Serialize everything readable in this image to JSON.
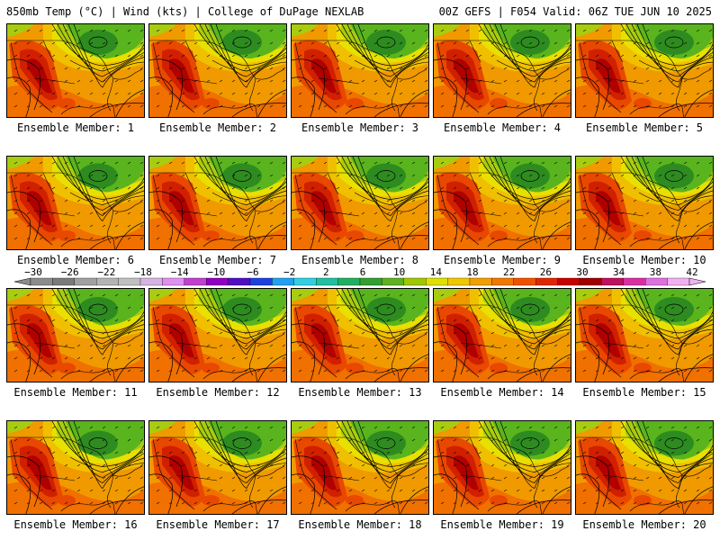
{
  "header": {
    "left": "850mb Temp (°C) | Wind (kts) | College of DuPage NEXLAB",
    "right": "00Z GEFS | F054 Valid: 06Z TUE JUN 10 2025"
  },
  "members": [
    {
      "label": "Ensemble Member: 1"
    },
    {
      "label": "Ensemble Member: 2"
    },
    {
      "label": "Ensemble Member: 3"
    },
    {
      "label": "Ensemble Member: 4"
    },
    {
      "label": "Ensemble Member: 5"
    },
    {
      "label": "Ensemble Member: 6"
    },
    {
      "label": "Ensemble Member: 7"
    },
    {
      "label": "Ensemble Member: 8"
    },
    {
      "label": "Ensemble Member: 9"
    },
    {
      "label": "Ensemble Member: 10"
    },
    {
      "label": "Ensemble Member: 11"
    },
    {
      "label": "Ensemble Member: 12"
    },
    {
      "label": "Ensemble Member: 13"
    },
    {
      "label": "Ensemble Member: 14"
    },
    {
      "label": "Ensemble Member: 15"
    },
    {
      "label": "Ensemble Member: 16"
    },
    {
      "label": "Ensemble Member: 17"
    },
    {
      "label": "Ensemble Member: 18"
    },
    {
      "label": "Ensemble Member: 19"
    },
    {
      "label": "Ensemble Member: 20"
    }
  ],
  "colorbar": {
    "ticks": [
      "-30",
      "-26",
      "-22",
      "-18",
      "-14",
      "-10",
      "-6",
      "-2",
      "2",
      "6",
      "10",
      "14",
      "18",
      "22",
      "26",
      "30",
      "34",
      "38",
      "42"
    ],
    "colors": [
      "#8c8c8c",
      "#7a7a7a",
      "#a0a0a0",
      "#b4b4b4",
      "#c0c0c0",
      "#d4b4e0",
      "#e090f0",
      "#c040d0",
      "#9000c0",
      "#5010c0",
      "#2040e0",
      "#20a0f0",
      "#30d0e0",
      "#20c0a0",
      "#20b060",
      "#30a030",
      "#60b020",
      "#a0c800",
      "#e0e000",
      "#f0c800",
      "#f0a000",
      "#f07800",
      "#f05000",
      "#e02800",
      "#c80000",
      "#a00000",
      "#c01060",
      "#d830a0",
      "#e070e0",
      "#f0b0f0"
    ]
  },
  "map_colors": {
    "green_dark": "#2e8b20",
    "green": "#5ab41e",
    "yellow_green": "#a8cc10",
    "yellow": "#e8e000",
    "orange_yellow": "#f0c000",
    "orange": "#f09a00",
    "dark_orange": "#f07000",
    "red_orange": "#e84800",
    "red": "#d02000",
    "dark_red": "#b00000"
  }
}
